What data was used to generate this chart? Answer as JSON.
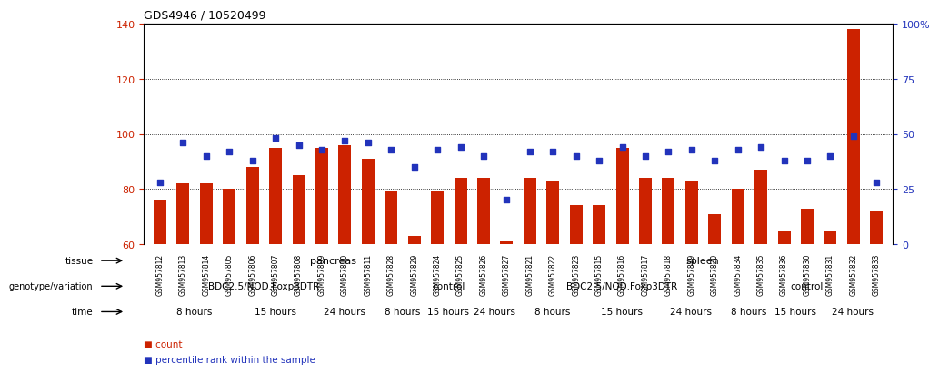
{
  "title": "GDS4946 / 10520499",
  "samples": [
    "GSM957812",
    "GSM957813",
    "GSM957814",
    "GSM957805",
    "GSM957806",
    "GSM957807",
    "GSM957808",
    "GSM957809",
    "GSM957810",
    "GSM957811",
    "GSM957828",
    "GSM957829",
    "GSM957824",
    "GSM957825",
    "GSM957826",
    "GSM957827",
    "GSM957821",
    "GSM957822",
    "GSM957823",
    "GSM957815",
    "GSM957816",
    "GSM957817",
    "GSM957818",
    "GSM957819",
    "GSM957820",
    "GSM957834",
    "GSM957835",
    "GSM957836",
    "GSM957830",
    "GSM957831",
    "GSM957832",
    "GSM957833"
  ],
  "counts": [
    76,
    82,
    82,
    80,
    88,
    95,
    85,
    95,
    96,
    91,
    79,
    63,
    79,
    84,
    84,
    61,
    84,
    83,
    74,
    74,
    95,
    84,
    84,
    83,
    71,
    80,
    87,
    65,
    73,
    65,
    138,
    72
  ],
  "percentile_ranks": [
    28,
    46,
    40,
    42,
    38,
    48,
    45,
    43,
    47,
    46,
    43,
    35,
    43,
    44,
    40,
    20,
    42,
    42,
    40,
    38,
    44,
    40,
    42,
    43,
    38,
    43,
    44,
    38,
    38,
    40,
    49,
    28
  ],
  "ylim_left": [
    60,
    140
  ],
  "yticks_left": [
    60,
    80,
    100,
    120,
    140
  ],
  "ylim_right": [
    0,
    100
  ],
  "yticks_right": [
    0,
    25,
    50,
    75,
    100
  ],
  "bar_color": "#cc2200",
  "dot_color": "#2233bb",
  "tissue_groups": [
    {
      "label": "pancreas",
      "start": 0,
      "end": 16,
      "color": "#bbeeaa"
    },
    {
      "label": "spleen",
      "start": 16,
      "end": 32,
      "color": "#44cc44"
    }
  ],
  "genotype_groups": [
    {
      "label": "BDC2.5/NOD.Foxp3DTR",
      "start": 0,
      "end": 10,
      "color": "#9988dd"
    },
    {
      "label": "control",
      "start": 10,
      "end": 16,
      "color": "#7766bb"
    },
    {
      "label": "BDC2.5/NOD.Foxp3DTR",
      "start": 16,
      "end": 25,
      "color": "#9988dd"
    },
    {
      "label": "control",
      "start": 25,
      "end": 32,
      "color": "#7766bb"
    }
  ],
  "time_groups": [
    {
      "label": "8 hours",
      "start": 0,
      "end": 4,
      "color": "#ffdddd"
    },
    {
      "label": "15 hours",
      "start": 4,
      "end": 7,
      "color": "#ffbbbb"
    },
    {
      "label": "24 hours",
      "start": 7,
      "end": 10,
      "color": "#ee9999"
    },
    {
      "label": "8 hours",
      "start": 10,
      "end": 12,
      "color": "#ffdddd"
    },
    {
      "label": "15 hours",
      "start": 12,
      "end": 14,
      "color": "#ffbbbb"
    },
    {
      "label": "24 hours",
      "start": 14,
      "end": 16,
      "color": "#ee9999"
    },
    {
      "label": "8 hours",
      "start": 16,
      "end": 19,
      "color": "#ffdddd"
    },
    {
      "label": "15 hours",
      "start": 19,
      "end": 22,
      "color": "#ffbbbb"
    },
    {
      "label": "24 hours",
      "start": 22,
      "end": 25,
      "color": "#ee9999"
    },
    {
      "label": "8 hours",
      "start": 25,
      "end": 27,
      "color": "#ffdddd"
    },
    {
      "label": "15 hours",
      "start": 27,
      "end": 29,
      "color": "#ffbbbb"
    },
    {
      "label": "24 hours",
      "start": 29,
      "end": 32,
      "color": "#ee9999"
    }
  ]
}
